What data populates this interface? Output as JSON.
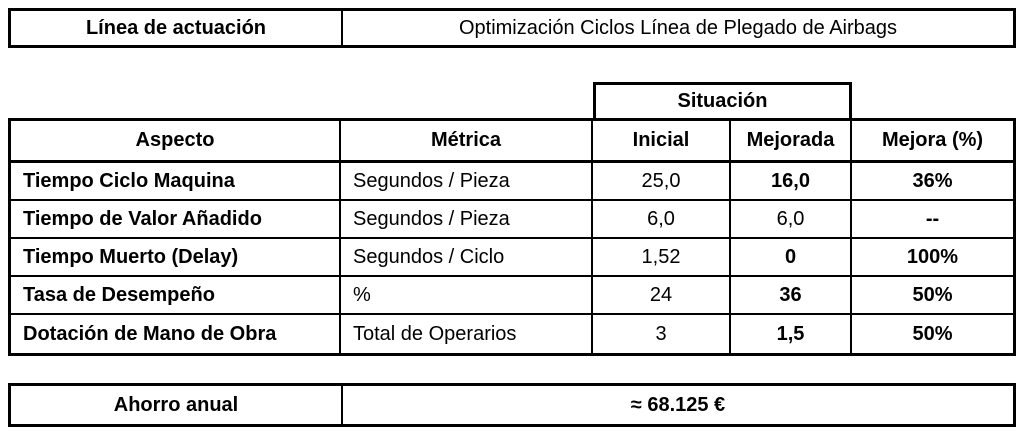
{
  "header": {
    "label": "Línea de actuación",
    "value": "Optimización Ciclos Línea de Plegado de Airbags"
  },
  "table": {
    "situacion_header": "Situación",
    "columns": {
      "aspecto": "Aspecto",
      "metrica": "Métrica",
      "inicial": "Inicial",
      "mejorada": "Mejorada",
      "mejora": "Mejora (%)"
    },
    "rows": [
      {
        "aspecto": "Tiempo Ciclo Maquina",
        "metrica": "Segundos / Pieza",
        "inicial": "25,0",
        "mejorada": "16,0",
        "mejora": "36%"
      },
      {
        "aspecto": "Tiempo de Valor Añadido",
        "metrica": "Segundos / Pieza",
        "inicial": "6,0",
        "mejorada": "6,0",
        "mejora": "--"
      },
      {
        "aspecto": "Tiempo Muerto (Delay)",
        "metrica": "Segundos / Ciclo",
        "inicial": "1,52",
        "mejorada": "0",
        "mejora": "100%"
      },
      {
        "aspecto": "Tasa de Desempeño",
        "metrica": "%",
        "inicial": "24",
        "mejorada": "36",
        "mejora": "50%"
      },
      {
        "aspecto": "Dotación de Mano de Obra",
        "metrica": "Total de Operarios",
        "inicial": "3",
        "mejorada": "1,5",
        "mejora": "50%"
      }
    ]
  },
  "footer": {
    "label": "Ahorro anual",
    "value": "≈ 68.125 €"
  }
}
